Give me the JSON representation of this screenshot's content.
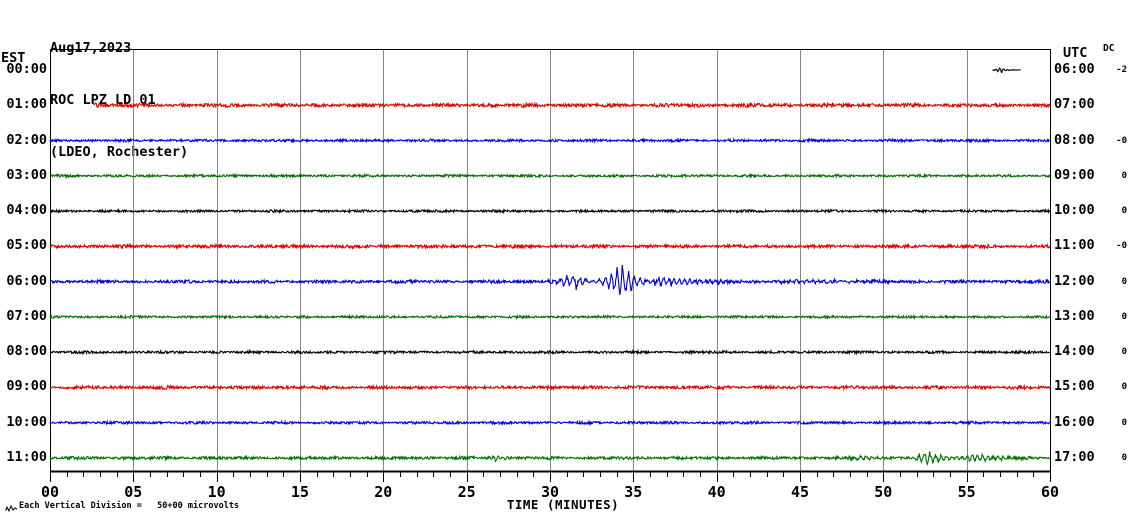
{
  "header": {
    "date": "Aug17,2023",
    "station": "ROC LPZ LD 01",
    "location": "(LDEO, Rochester)"
  },
  "axes": {
    "left_label": "EST",
    "right_label": "UTC",
    "dc_label": "DC",
    "x_label": "TIME (MINUTES)",
    "x_ticks": [
      "00",
      "05",
      "10",
      "15",
      "20",
      "25",
      "30",
      "35",
      "40",
      "45",
      "50",
      "55",
      "60"
    ]
  },
  "footer": {
    "scale_note": "Each Vertical Division =   50+00 microvolts"
  },
  "colors": {
    "trace_black": "#000000",
    "trace_red": "#e00000",
    "trace_blue": "#0000dd",
    "trace_green": "#007000",
    "gridline": "#858585",
    "border": "#000000"
  },
  "chart_data": {
    "type": "line",
    "title": "ROC LPZ LD 01 helicorder, Aug17,2023",
    "xlabel": "TIME (MINUTES)",
    "x_range_minutes": [
      0,
      60
    ],
    "x_major_tick_min": 5,
    "x_minor_tick_min": 1,
    "grid": "vertical-5min",
    "vertical_division_microvolts": 50.0,
    "rows": [
      {
        "est": "00:00",
        "utc": "06:00",
        "dc": "-2",
        "color": "#000000",
        "segments": [
          {
            "from": 56.55,
            "to": 58.25,
            "amp": 0.5
          }
        ],
        "events": [
          {
            "start": 56.6,
            "peak": 57.0,
            "end": 57.6,
            "amp": 4,
            "freq": 4.5
          }
        ]
      },
      {
        "est": "01:00",
        "utc": "07:00",
        "dc": "",
        "color": "#e00000",
        "segments": [
          {
            "from": 2.6,
            "to": 60,
            "amp": 2.1
          }
        ],
        "events": [
          {
            "start": 2.6,
            "peak": 2.8,
            "end": 3.5,
            "amp": 3,
            "freq": 4
          }
        ]
      },
      {
        "est": "02:00",
        "utc": "08:00",
        "dc": "-0",
        "color": "#0000dd",
        "segments": [
          {
            "from": 0,
            "to": 60,
            "amp": 1.5
          }
        ],
        "events": []
      },
      {
        "est": "03:00",
        "utc": "09:00",
        "dc": "0",
        "color": "#007000",
        "segments": [
          {
            "from": 0,
            "to": 60,
            "amp": 1.4
          }
        ],
        "events": []
      },
      {
        "est": "04:00",
        "utc": "10:00",
        "dc": "0",
        "color": "#000000",
        "segments": [
          {
            "from": 0,
            "to": 60,
            "amp": 1.4
          }
        ],
        "events": []
      },
      {
        "est": "05:00",
        "utc": "11:00",
        "dc": "-0",
        "color": "#e00000",
        "segments": [
          {
            "from": 0,
            "to": 60,
            "amp": 1.9
          }
        ],
        "events": []
      },
      {
        "est": "06:00",
        "utc": "12:00",
        "dc": "0",
        "color": "#0000dd",
        "segments": [
          {
            "from": 0,
            "to": 60,
            "amp": 1.8
          }
        ],
        "events": [
          {
            "start": 29.0,
            "peak": 31.6,
            "end": 33.2,
            "amp": 7,
            "freq": 2.6
          },
          {
            "start": 32.6,
            "peak": 34.3,
            "end": 36.4,
            "amp": 18,
            "freq": 2.9
          },
          {
            "start": 35.3,
            "peak": 36.6,
            "end": 44.0,
            "amp": 5,
            "freq": 3.2
          },
          {
            "start": 42.0,
            "peak": 45.0,
            "end": 60.0,
            "amp": 1.5,
            "freq": 3.0
          }
        ]
      },
      {
        "est": "07:00",
        "utc": "13:00",
        "dc": "0",
        "color": "#007000",
        "segments": [
          {
            "from": 0,
            "to": 60,
            "amp": 1.4
          }
        ],
        "events": []
      },
      {
        "est": "08:00",
        "utc": "14:00",
        "dc": "0",
        "color": "#000000",
        "segments": [
          {
            "from": 0,
            "to": 60,
            "amp": 1.5
          }
        ],
        "events": []
      },
      {
        "est": "09:00",
        "utc": "15:00",
        "dc": "0",
        "color": "#e00000",
        "segments": [
          {
            "from": 0,
            "to": 60,
            "amp": 1.9
          }
        ],
        "events": []
      },
      {
        "est": "10:00",
        "utc": "16:00",
        "dc": "0",
        "color": "#0000dd",
        "segments": [
          {
            "from": 0,
            "to": 60,
            "amp": 1.5
          }
        ],
        "events": []
      },
      {
        "est": "11:00",
        "utc": "17:00",
        "dc": "0",
        "color": "#007000",
        "segments": [
          {
            "from": 0,
            "to": 60,
            "amp": 1.7
          }
        ],
        "events": [
          {
            "start": 26.0,
            "peak": 26.7,
            "end": 27.9,
            "amp": 3.5,
            "freq": 3.5
          },
          {
            "start": 46.5,
            "peak": 49.0,
            "end": 51.5,
            "amp": 2.2,
            "freq": 3.0
          },
          {
            "start": 51.3,
            "peak": 52.6,
            "end": 54.8,
            "amp": 7.5,
            "freq": 3.0
          },
          {
            "start": 53.5,
            "peak": 55.5,
            "end": 60.0,
            "amp": 3.8,
            "freq": 3.2
          }
        ]
      }
    ]
  }
}
